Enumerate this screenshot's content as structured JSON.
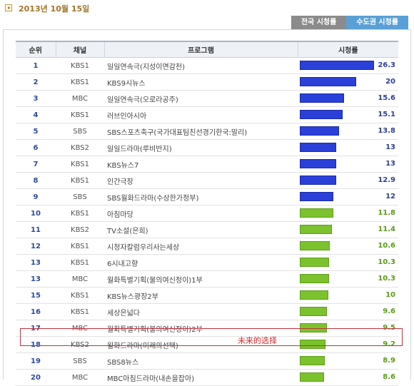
{
  "date": "2013년 10월 15일",
  "tabs": [
    {
      "label": "전국 시청률",
      "active": false
    },
    {
      "label": "수도권 시청률",
      "active": true
    }
  ],
  "table": {
    "headers": {
      "rank": "순위",
      "channel": "채널",
      "program": "프로그램",
      "rating": "시청률"
    },
    "max_rating": 26.3,
    "rows": [
      {
        "rank": "1",
        "channel": "KBS1",
        "program": "일일연속극(지성이면감천)",
        "rating": "26.3",
        "color": "blue"
      },
      {
        "rank": "2",
        "channel": "KBS1",
        "program": "KBS9시뉴스",
        "rating": "20",
        "color": "blue"
      },
      {
        "rank": "3",
        "channel": "MBC",
        "program": "일일연속극(오로라공주)",
        "rating": "15.6",
        "color": "blue"
      },
      {
        "rank": "4",
        "channel": "KBS1",
        "program": "러브인아시아",
        "rating": "15.1",
        "color": "blue"
      },
      {
        "rank": "5",
        "channel": "SBS",
        "program": "SBS스포츠축구(국가대표팀친선경기한국:말리)",
        "rating": "13.8",
        "color": "blue"
      },
      {
        "rank": "6",
        "channel": "KBS2",
        "program": "일일드라마(루비반지)",
        "rating": "13",
        "color": "blue"
      },
      {
        "rank": "7",
        "channel": "KBS1",
        "program": "KBS뉴스7",
        "rating": "13",
        "color": "blue"
      },
      {
        "rank": "8",
        "channel": "KBS1",
        "program": "인간극장",
        "rating": "12.9",
        "color": "blue"
      },
      {
        "rank": "9",
        "channel": "SBS",
        "program": "SBS월화드라마(수상한가정부)",
        "rating": "12",
        "color": "blue"
      },
      {
        "rank": "10",
        "channel": "KBS1",
        "program": "아침마당",
        "rating": "11.8",
        "color": "green"
      },
      {
        "rank": "11",
        "channel": "KBS2",
        "program": "TV소설(은희)",
        "rating": "11.4",
        "color": "green"
      },
      {
        "rank": "12",
        "channel": "KBS1",
        "program": "시청자칼럼우리사는세상",
        "rating": "10.6",
        "color": "green"
      },
      {
        "rank": "13",
        "channel": "KBS1",
        "program": "6시내고향",
        "rating": "10.3",
        "color": "green"
      },
      {
        "rank": "13",
        "channel": "MBC",
        "program": "월화특별기획(불의여신정이)1부",
        "rating": "10.3",
        "color": "green"
      },
      {
        "rank": "15",
        "channel": "KBS1",
        "program": "KBS뉴스광장2부",
        "rating": "10",
        "color": "green"
      },
      {
        "rank": "16",
        "channel": "KBS1",
        "program": "세상은넓다",
        "rating": "9.6",
        "color": "green"
      },
      {
        "rank": "17",
        "channel": "MBC",
        "program": "월화특별기획(불의여신정이)2부",
        "rating": "9.5",
        "color": "green"
      },
      {
        "rank": "18",
        "channel": "KBS2",
        "program": "월화드라마(미래의선택)",
        "rating": "9.2",
        "color": "green"
      },
      {
        "rank": "19",
        "channel": "SBS",
        "program": "SBS8뉴스",
        "rating": "8.9",
        "color": "green"
      },
      {
        "rank": "20",
        "channel": "MBC",
        "program": "MBC아침드라마(내손을잡아)",
        "rating": "8.6",
        "color": "green"
      }
    ]
  },
  "annotation": "未来的选择",
  "colors": {
    "blue_bar": "#2b40d8",
    "green_bar": "#7cc12e",
    "highlight": "#c0333a"
  }
}
